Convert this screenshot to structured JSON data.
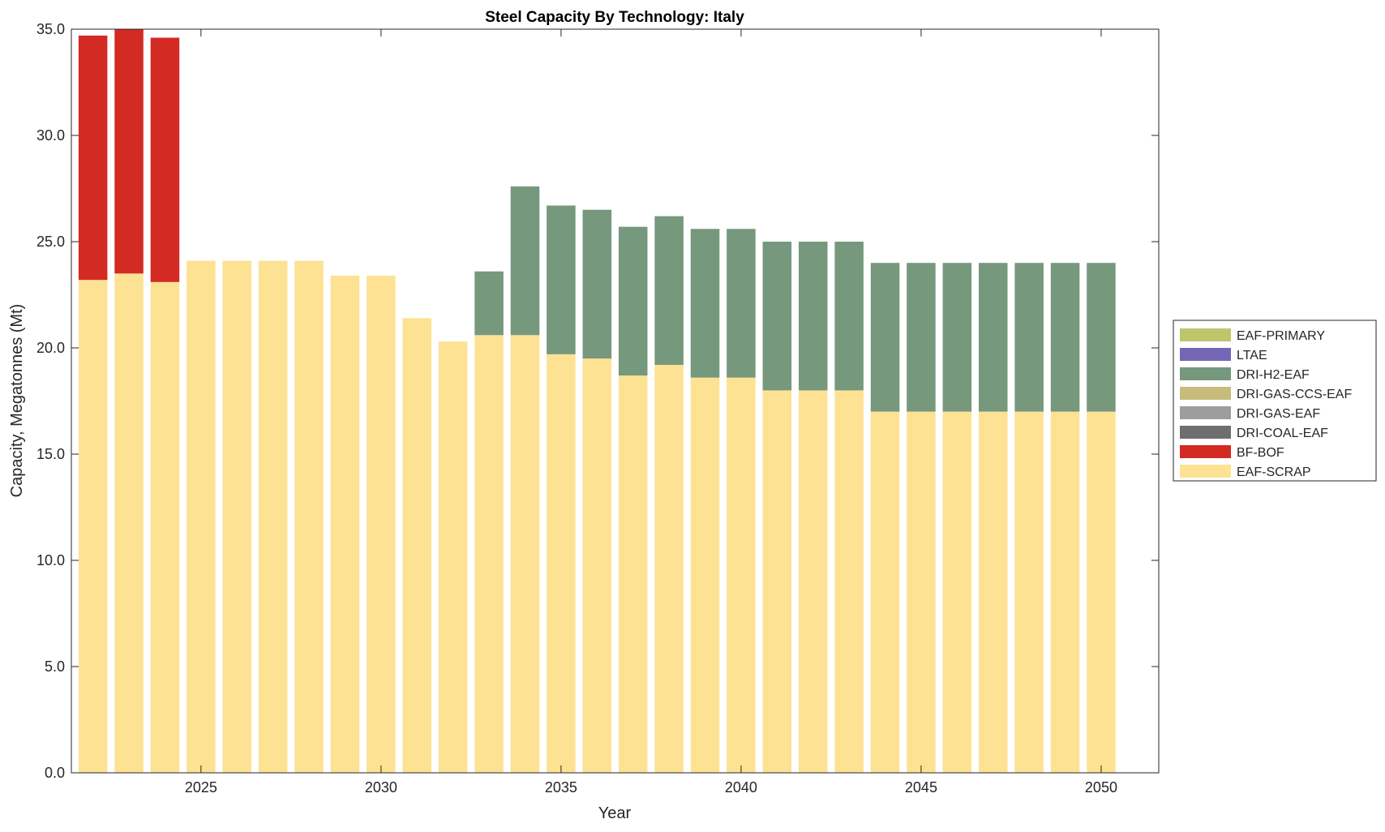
{
  "chart_data": {
    "type": "bar",
    "stacked": true,
    "title": "Steel Capacity By Technology: Italy",
    "xlabel": "Year",
    "ylabel": "Capacity, Megatonnes (Mt)",
    "ylim": [
      0,
      35
    ],
    "yticks": [
      "0.0",
      "5.0",
      "10.0",
      "15.0",
      "20.0",
      "25.0",
      "30.0",
      "35.0"
    ],
    "ytick_values": [
      0,
      5,
      10,
      15,
      20,
      25,
      30,
      35
    ],
    "xticks": [
      "2025",
      "2030",
      "2035",
      "2040",
      "2045",
      "2050"
    ],
    "xtick_values": [
      2025,
      2030,
      2035,
      2040,
      2045,
      2050
    ],
    "xlim": [
      2021.4,
      2051.6
    ],
    "legend_position": "outside-right",
    "categories": [
      2022,
      2023,
      2024,
      2025,
      2026,
      2027,
      2028,
      2029,
      2030,
      2031,
      2032,
      2033,
      2034,
      2035,
      2036,
      2037,
      2038,
      2039,
      2040,
      2041,
      2042,
      2043,
      2044,
      2045,
      2046,
      2047,
      2048,
      2049,
      2050
    ],
    "series": [
      {
        "name": "EAF-SCRAP",
        "color": "#fde293",
        "values": [
          23.2,
          23.5,
          23.1,
          24.1,
          24.1,
          24.1,
          24.1,
          23.4,
          23.4,
          21.4,
          20.3,
          20.6,
          20.6,
          19.7,
          19.5,
          18.7,
          19.2,
          18.6,
          18.6,
          18.0,
          18.0,
          18.0,
          17.0,
          17.0,
          17.0,
          17.0,
          17.0,
          17.0,
          17.0
        ]
      },
      {
        "name": "BF-BOF",
        "color": "#d32a24",
        "values": [
          11.5,
          11.5,
          11.5,
          0,
          0,
          0,
          0,
          0,
          0,
          0,
          0,
          0,
          0,
          0,
          0,
          0,
          0,
          0,
          0,
          0,
          0,
          0,
          0,
          0,
          0,
          0,
          0,
          0,
          0
        ]
      },
      {
        "name": "DRI-COAL-EAF",
        "color": "#6e6e6e",
        "values": [
          0,
          0,
          0,
          0,
          0,
          0,
          0,
          0,
          0,
          0,
          0,
          0,
          0,
          0,
          0,
          0,
          0,
          0,
          0,
          0,
          0,
          0,
          0,
          0,
          0,
          0,
          0,
          0,
          0
        ]
      },
      {
        "name": "DRI-GAS-EAF",
        "color": "#9d9d9d",
        "values": [
          0,
          0,
          0,
          0,
          0,
          0,
          0,
          0,
          0,
          0,
          0,
          0,
          0,
          0,
          0,
          0,
          0,
          0,
          0,
          0,
          0,
          0,
          0,
          0,
          0,
          0,
          0,
          0,
          0
        ]
      },
      {
        "name": "DRI-GAS-CCS-EAF",
        "color": "#c7bc7c",
        "values": [
          0,
          0,
          0,
          0,
          0,
          0,
          0,
          0,
          0,
          0,
          0,
          0,
          0,
          0,
          0,
          0,
          0,
          0,
          0,
          0,
          0,
          0,
          0,
          0,
          0,
          0,
          0,
          0,
          0
        ]
      },
      {
        "name": "DRI-H2-EAF",
        "color": "#76987d",
        "values": [
          0,
          0,
          0,
          0,
          0,
          0,
          0,
          0,
          0,
          0,
          0,
          3.0,
          7.0,
          7.0,
          7.0,
          7.0,
          7.0,
          7.0,
          7.0,
          7.0,
          7.0,
          7.0,
          7.0,
          7.0,
          7.0,
          7.0,
          7.0,
          7.0,
          7.0
        ]
      },
      {
        "name": "LTAE",
        "color": "#7468b6",
        "values": [
          0,
          0,
          0,
          0,
          0,
          0,
          0,
          0,
          0,
          0,
          0,
          0,
          0,
          0,
          0,
          0,
          0,
          0,
          0,
          0,
          0,
          0,
          0,
          0,
          0,
          0,
          0,
          0,
          0
        ]
      },
      {
        "name": "EAF-PRIMARY",
        "color": "#bec66d",
        "values": [
          0,
          0,
          0,
          0,
          0,
          0,
          0,
          0,
          0,
          0,
          0,
          0,
          0,
          0,
          0,
          0,
          0,
          0,
          0,
          0,
          0,
          0,
          0,
          0,
          0,
          0,
          0,
          0,
          0
        ]
      }
    ],
    "legend_order": [
      "EAF-PRIMARY",
      "LTAE",
      "DRI-H2-EAF",
      "DRI-GAS-CCS-EAF",
      "DRI-GAS-EAF",
      "DRI-COAL-EAF",
      "BF-BOF",
      "EAF-SCRAP"
    ]
  }
}
